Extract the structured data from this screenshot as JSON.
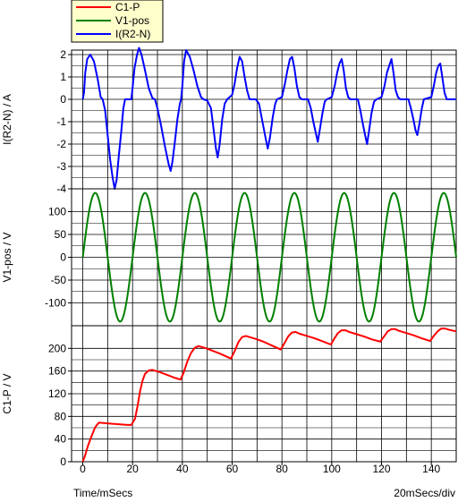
{
  "legend": [
    {
      "label": "C1-P",
      "color": "#ff0000"
    },
    {
      "label": "V1-pos",
      "color": "#008000"
    },
    {
      "label": "I(R2-N)",
      "color": "#0000ff"
    }
  ],
  "footer": {
    "x_axis_title": "Time/mSecs",
    "scale": "20mSecs/div"
  },
  "chart_data": [
    {
      "type": "line",
      "ylabel": "I(R2-N) / A",
      "ylim": [
        -4,
        2.2
      ],
      "yticks": [
        2,
        1,
        0,
        -1,
        -2,
        -3,
        -4
      ],
      "xlim": [
        -4.5,
        150
      ],
      "series": [
        {
          "name": "I(R2-N)",
          "color": "#0000ff",
          "points": [
            [
              0,
              0
            ],
            [
              0.5,
              0.3
            ],
            [
              1,
              1.2
            ],
            [
              1.8,
              1.8
            ],
            [
              3,
              2.0
            ],
            [
              4.5,
              1.7
            ],
            [
              6,
              0.9
            ],
            [
              7.2,
              0.1
            ],
            [
              8,
              0
            ],
            [
              9,
              -0.5
            ],
            [
              10,
              -1.6
            ],
            [
              11,
              -2.7
            ],
            [
              12,
              -3.5
            ],
            [
              12.8,
              -4.0
            ],
            [
              13.6,
              -3.6
            ],
            [
              14.5,
              -2.5
            ],
            [
              15.5,
              -1.4
            ],
            [
              16.3,
              -0.4
            ],
            [
              17,
              0
            ],
            [
              19.5,
              0
            ],
            [
              20,
              0.5
            ],
            [
              20.8,
              1.4
            ],
            [
              21.8,
              2.0
            ],
            [
              22.6,
              2.3
            ],
            [
              23.6,
              2.0
            ],
            [
              25,
              1.3
            ],
            [
              26.5,
              0.5
            ],
            [
              28,
              0.05
            ],
            [
              29,
              0
            ],
            [
              30,
              -0.4
            ],
            [
              31.5,
              -1.2
            ],
            [
              33,
              -2.1
            ],
            [
              34.5,
              -2.9
            ],
            [
              35.3,
              -3.2
            ],
            [
              36,
              -2.8
            ],
            [
              37,
              -1.9
            ],
            [
              38,
              -0.9
            ],
            [
              39,
              -0.2
            ],
            [
              39.5,
              0
            ],
            [
              40,
              0.6
            ],
            [
              40.7,
              1.7
            ],
            [
              41.5,
              2.2
            ],
            [
              43,
              1.9
            ],
            [
              44.5,
              1.3
            ],
            [
              46,
              0.6
            ],
            [
              47.5,
              0.1
            ],
            [
              48.5,
              0
            ],
            [
              50,
              -0.05
            ],
            [
              51.5,
              -0.4
            ],
            [
              52.5,
              -1.3
            ],
            [
              53.5,
              -2.2
            ],
            [
              54.2,
              -2.6
            ],
            [
              55,
              -2.0
            ],
            [
              56,
              -0.9
            ],
            [
              57,
              -0.2
            ],
            [
              58,
              0
            ],
            [
              60,
              0.2
            ],
            [
              61,
              0.7
            ],
            [
              62,
              1.4
            ],
            [
              63,
              1.9
            ],
            [
              64,
              1.7
            ],
            [
              65,
              1.0
            ],
            [
              66,
              0.4
            ],
            [
              67,
              0
            ],
            [
              69.5,
              0
            ],
            [
              70.8,
              -0.2
            ],
            [
              72,
              -0.9
            ],
            [
              73.2,
              -1.6
            ],
            [
              74.3,
              -2.2
            ],
            [
              75.2,
              -1.7
            ],
            [
              76.3,
              -0.8
            ],
            [
              77.3,
              -0.2
            ],
            [
              78,
              0
            ],
            [
              80,
              0.1
            ],
            [
              81.2,
              0.7
            ],
            [
              82.2,
              1.3
            ],
            [
              83.2,
              1.8
            ],
            [
              84.1,
              1.9
            ],
            [
              85,
              1.4
            ],
            [
              86,
              0.6
            ],
            [
              87,
              0.1
            ],
            [
              88,
              0
            ],
            [
              90.5,
              0
            ],
            [
              91.6,
              -0.4
            ],
            [
              92.6,
              -1.0
            ],
            [
              93.6,
              -1.5
            ],
            [
              94.4,
              -1.9
            ],
            [
              95.3,
              -1.3
            ],
            [
              96.3,
              -0.6
            ],
            [
              97.2,
              -0.1
            ],
            [
              98,
              0
            ],
            [
              100,
              0.1
            ],
            [
              101.2,
              0.6
            ],
            [
              102.2,
              1.2
            ],
            [
              103.1,
              1.6
            ],
            [
              104,
              1.8
            ],
            [
              104.8,
              1.3
            ],
            [
              105.7,
              0.5
            ],
            [
              106.6,
              0.1
            ],
            [
              107.5,
              0
            ],
            [
              110.5,
              0
            ],
            [
              111.5,
              -0.5
            ],
            [
              112.5,
              -1.1
            ],
            [
              113.4,
              -1.6
            ],
            [
              114.2,
              -2.0
            ],
            [
              115,
              -1.4
            ],
            [
              116,
              -0.6
            ],
            [
              117,
              -0.1
            ],
            [
              118,
              0
            ],
            [
              120,
              0.1
            ],
            [
              121.2,
              0.6
            ],
            [
              122.2,
              1.2
            ],
            [
              123.1,
              1.5
            ],
            [
              124,
              1.8
            ],
            [
              124.8,
              1.2
            ],
            [
              125.7,
              0.4
            ],
            [
              126.6,
              0.1
            ],
            [
              127.5,
              0
            ],
            [
              130.8,
              0
            ],
            [
              131.8,
              -0.4
            ],
            [
              132.8,
              -0.9
            ],
            [
              133.7,
              -1.4
            ],
            [
              134.4,
              -1.6
            ],
            [
              135.2,
              -1.1
            ],
            [
              136.2,
              -0.4
            ],
            [
              137,
              0
            ],
            [
              140,
              0.1
            ],
            [
              141,
              0.6
            ],
            [
              142,
              1.2
            ],
            [
              142.8,
              1.5
            ],
            [
              143.6,
              1.6
            ],
            [
              144.4,
              1.0
            ],
            [
              145.3,
              0.3
            ],
            [
              146.2,
              0
            ],
            [
              150,
              0
            ]
          ]
        }
      ]
    },
    {
      "type": "line",
      "ylabel": "V1-pos / V",
      "ylim": [
        -150,
        150
      ],
      "yticks": [
        100,
        50,
        0,
        -50,
        -100
      ],
      "xlim": [
        -4.5,
        150
      ],
      "series": [
        {
          "name": "V1-pos",
          "color": "#008000",
          "function": "sine",
          "amplitude": 141,
          "period_ms": 20,
          "x_start": 0,
          "x_end": 150
        }
      ]
    },
    {
      "type": "line",
      "ylabel": "C1-P / V",
      "ylim": [
        0,
        240
      ],
      "yticks": [
        200,
        160,
        120,
        80,
        40,
        0
      ],
      "xticks": [
        0,
        20,
        40,
        60,
        80,
        100,
        120,
        140
      ],
      "xlim": [
        -4.5,
        150
      ],
      "series": [
        {
          "name": "C1-P",
          "color": "#ff0000",
          "points": [
            [
              0,
              0
            ],
            [
              1,
              12
            ],
            [
              2,
              27
            ],
            [
              3.5,
              45
            ],
            [
              5,
              61
            ],
            [
              6.5,
              69
            ],
            [
              9,
              68
            ],
            [
              12,
              67
            ],
            [
              15,
              66
            ],
            [
              18,
              65
            ],
            [
              19.5,
              65
            ],
            [
              21,
              76
            ],
            [
              22,
              98
            ],
            [
              23,
              124
            ],
            [
              24,
              143
            ],
            [
              25,
              155
            ],
            [
              26.5,
              161
            ],
            [
              28,
              162
            ],
            [
              31,
              158
            ],
            [
              34,
              153
            ],
            [
              37,
              148
            ],
            [
              39.3,
              145
            ],
            [
              40.5,
              157
            ],
            [
              42,
              177
            ],
            [
              43.5,
              192
            ],
            [
              45,
              201
            ],
            [
              46.5,
              204
            ],
            [
              49,
              201
            ],
            [
              52,
              196
            ],
            [
              55,
              191
            ],
            [
              58,
              185
            ],
            [
              59.5,
              182
            ],
            [
              61,
              195
            ],
            [
              62.5,
              211
            ],
            [
              64,
              220
            ],
            [
              65.5,
              222
            ],
            [
              67,
              220
            ],
            [
              70,
              216
            ],
            [
              73,
              211
            ],
            [
              76,
              205
            ],
            [
              79,
              199
            ],
            [
              79.5,
              198
            ],
            [
              81,
              209
            ],
            [
              82.5,
              221
            ],
            [
              84,
              228
            ],
            [
              85.5,
              229
            ],
            [
              87,
              226
            ],
            [
              90,
              222
            ],
            [
              93,
              218
            ],
            [
              96,
              213
            ],
            [
              99,
              208
            ],
            [
              99.7,
              207
            ],
            [
              101,
              217
            ],
            [
              102.5,
              227
            ],
            [
              104,
              232
            ],
            [
              105.5,
              232
            ],
            [
              107,
              229
            ],
            [
              110,
              225
            ],
            [
              113,
              221
            ],
            [
              116,
              216
            ],
            [
              119.5,
              212
            ],
            [
              121,
              221
            ],
            [
              122.5,
              230
            ],
            [
              124,
              234
            ],
            [
              125.5,
              234
            ],
            [
              127,
              231
            ],
            [
              130,
              227
            ],
            [
              133,
              223
            ],
            [
              136,
              218
            ],
            [
              139.5,
              213
            ],
            [
              141,
              222
            ],
            [
              142.5,
              230
            ],
            [
              144,
              235
            ],
            [
              145.5,
              235
            ],
            [
              147,
              233
            ],
            [
              150,
              230
            ]
          ]
        }
      ]
    }
  ]
}
